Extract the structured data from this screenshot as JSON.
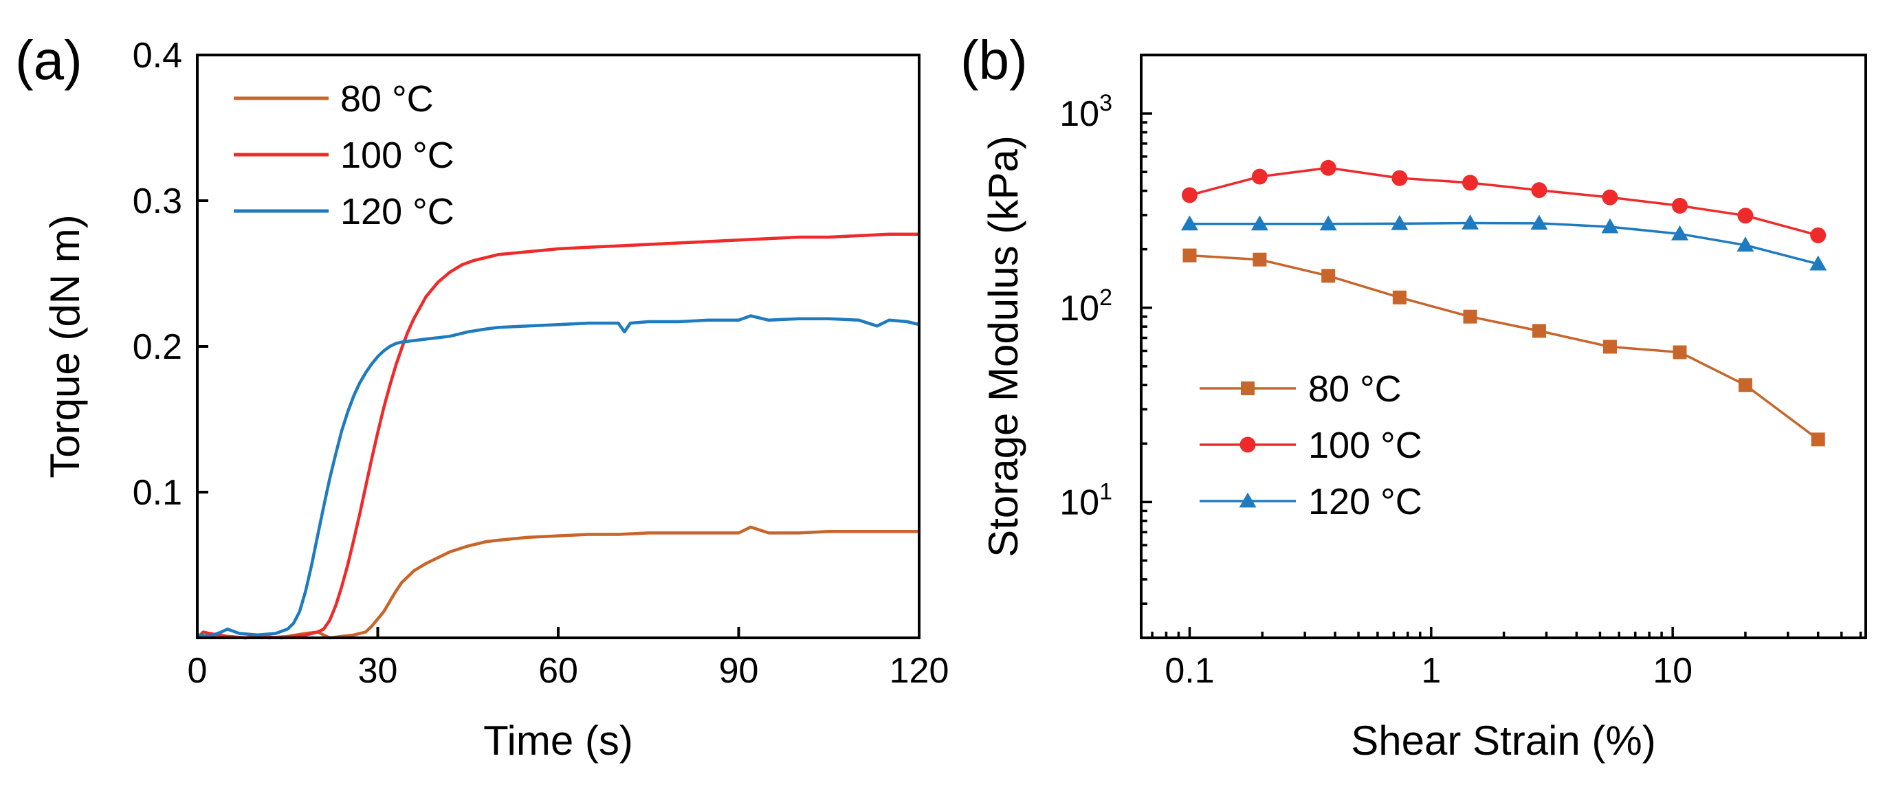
{
  "chart_data": [
    {
      "panel": "(a)",
      "type": "line",
      "xlabel": "Time (s)",
      "ylabel": "Torque (dN m)",
      "xlim": [
        0,
        120
      ],
      "ylim": [
        0,
        0.4
      ],
      "xticks": [
        0,
        30,
        60,
        90,
        120
      ],
      "xtick_labels": [
        "0",
        "30",
        "60",
        "90",
        "120"
      ],
      "yticks": [
        0.1,
        0.2,
        0.3,
        0.4
      ],
      "ytick_labels": [
        "0.1",
        "0.2",
        "0.3",
        "0.4"
      ],
      "legend_position": "top-left",
      "series": [
        {
          "name": "80 °C",
          "color": "#c8652a",
          "x": [
            0,
            2,
            5,
            8,
            10,
            12,
            15,
            18,
            20,
            22,
            24,
            26,
            28,
            29,
            30,
            31,
            32,
            33,
            34,
            35,
            36,
            38,
            40,
            42,
            45,
            48,
            50,
            55,
            60,
            65,
            70,
            75,
            80,
            85,
            90,
            92,
            95,
            100,
            105,
            110,
            115,
            120
          ],
          "y": [
            0,
            0.002,
            0.001,
            0,
            0.001,
            0,
            0.001,
            0.003,
            0.004,
            0,
            0.001,
            0.002,
            0.004,
            0.008,
            0.013,
            0.018,
            0.025,
            0.032,
            0.038,
            0.042,
            0.046,
            0.051,
            0.055,
            0.059,
            0.063,
            0.066,
            0.067,
            0.069,
            0.07,
            0.071,
            0.071,
            0.072,
            0.072,
            0.072,
            0.072,
            0.076,
            0.072,
            0.072,
            0.073,
            0.073,
            0.073,
            0.073
          ]
        },
        {
          "name": "100 °C",
          "color": "#ee2a2a",
          "x": [
            0,
            1,
            2,
            5,
            8,
            10,
            14,
            18,
            20,
            21,
            22,
            23,
            24,
            25,
            26,
            27,
            28,
            29,
            30,
            31,
            32,
            33,
            34,
            35,
            36,
            38,
            40,
            42,
            44,
            46,
            48,
            50,
            55,
            60,
            65,
            70,
            75,
            80,
            85,
            90,
            95,
            100,
            105,
            110,
            115,
            120
          ],
          "y": [
            0,
            0.004,
            0.003,
            0.001,
            0,
            0.001,
            0,
            0.002,
            0.004,
            0.006,
            0.012,
            0.022,
            0.035,
            0.05,
            0.067,
            0.085,
            0.104,
            0.123,
            0.141,
            0.158,
            0.173,
            0.187,
            0.199,
            0.21,
            0.219,
            0.234,
            0.244,
            0.251,
            0.256,
            0.259,
            0.261,
            0.263,
            0.265,
            0.267,
            0.268,
            0.269,
            0.27,
            0.271,
            0.272,
            0.273,
            0.274,
            0.275,
            0.275,
            0.276,
            0.277,
            0.277
          ]
        },
        {
          "name": "120 °C",
          "color": "#1f7bbf",
          "x": [
            0,
            2,
            4,
            5,
            7,
            10,
            13,
            15,
            16,
            17,
            18,
            19,
            20,
            21,
            22,
            23,
            24,
            25,
            26,
            27,
            28,
            29,
            30,
            31,
            32,
            33,
            34,
            36,
            38,
            40,
            42,
            45,
            48,
            50,
            55,
            60,
            65,
            70,
            71,
            72,
            75,
            80,
            85,
            90,
            92,
            95,
            100,
            105,
            110,
            113,
            115,
            118,
            120
          ],
          "y": [
            0.002,
            0.001,
            0.004,
            0.006,
            0.003,
            0.002,
            0.003,
            0.006,
            0.01,
            0.018,
            0.032,
            0.05,
            0.07,
            0.09,
            0.109,
            0.126,
            0.142,
            0.155,
            0.166,
            0.175,
            0.182,
            0.188,
            0.193,
            0.197,
            0.2,
            0.202,
            0.203,
            0.204,
            0.205,
            0.206,
            0.207,
            0.21,
            0.212,
            0.213,
            0.214,
            0.215,
            0.216,
            0.216,
            0.21,
            0.216,
            0.217,
            0.217,
            0.218,
            0.218,
            0.221,
            0.218,
            0.219,
            0.219,
            0.218,
            0.214,
            0.218,
            0.217,
            0.215
          ]
        }
      ]
    },
    {
      "panel": "(b)",
      "type": "line",
      "xlabel": "Shear Strain (%)",
      "ylabel": "Storage Modulus (kPa)",
      "xscale": "log",
      "yscale": "log",
      "xlim": [
        0.063,
        63
      ],
      "ylim": [
        2,
        2000
      ],
      "xticks": [
        0.1,
        1,
        10
      ],
      "xtick_labels": [
        "0.1",
        "1",
        "10"
      ],
      "yticks": [
        10,
        100,
        1000
      ],
      "ytick_labels": [
        {
          "base": "10",
          "exp": "1"
        },
        {
          "base": "10",
          "exp": "2"
        },
        {
          "base": "10",
          "exp": "3"
        }
      ],
      "legend_position": "center-left",
      "series": [
        {
          "name": "80 °C",
          "color": "#c8652a",
          "marker": "square",
          "x": [
            0.1,
            0.195,
            0.375,
            0.74,
            1.45,
            2.8,
            5.5,
            10.7,
            20,
            40
          ],
          "y": [
            186,
            177,
            146,
            113,
            90,
            76,
            63,
            59,
            40,
            21
          ]
        },
        {
          "name": "100 °C",
          "color": "#ee2a2a",
          "marker": "circle",
          "x": [
            0.1,
            0.195,
            0.375,
            0.74,
            1.45,
            2.8,
            5.5,
            10.7,
            20,
            40
          ],
          "y": [
            380,
            473,
            525,
            465,
            440,
            403,
            370,
            335,
            298,
            236
          ]
        },
        {
          "name": "120 °C",
          "color": "#1f7bbf",
          "marker": "triangle",
          "x": [
            0.1,
            0.195,
            0.375,
            0.74,
            1.45,
            2.8,
            5.5,
            10.7,
            20,
            40
          ],
          "y": [
            270,
            270,
            270,
            271,
            273,
            272,
            261,
            240,
            210,
            168
          ]
        }
      ]
    }
  ]
}
